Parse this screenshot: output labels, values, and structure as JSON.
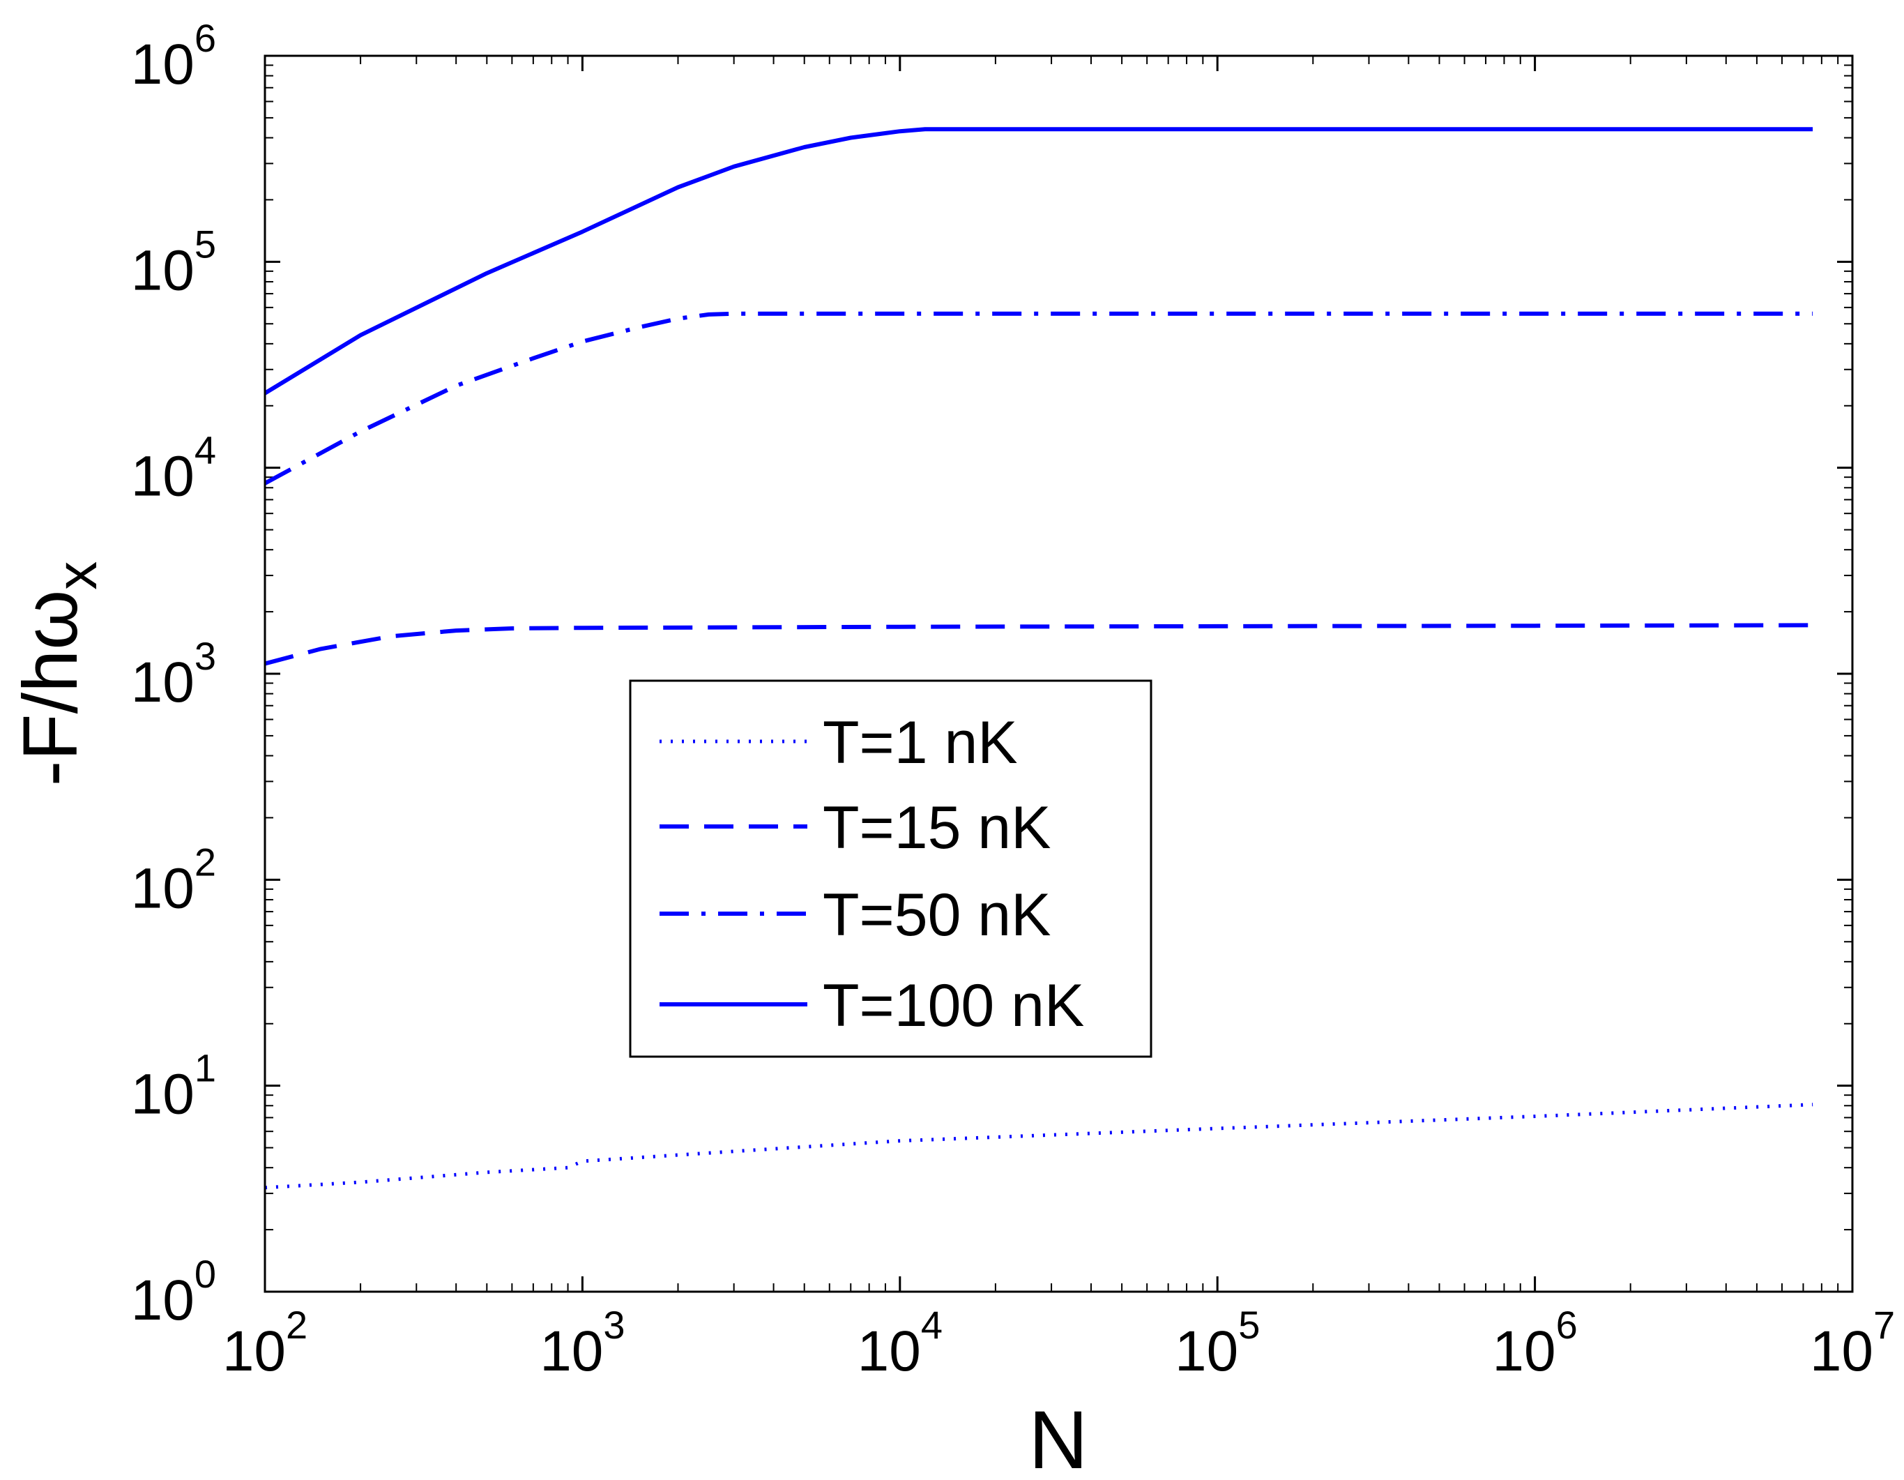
{
  "chart_data": {
    "type": "line",
    "xscale": "log",
    "yscale": "log",
    "xlim": [
      100,
      10000000
    ],
    "ylim": [
      1,
      1000000
    ],
    "xlabel": "N",
    "ylabel_main": "-F/hω",
    "ylabel_sub": "x",
    "xticks": [
      {
        "base": "10",
        "exp": "2",
        "value": 100
      },
      {
        "base": "10",
        "exp": "3",
        "value": 1000
      },
      {
        "base": "10",
        "exp": "4",
        "value": 10000
      },
      {
        "base": "10",
        "exp": "5",
        "value": 100000
      },
      {
        "base": "10",
        "exp": "6",
        "value": 1000000
      },
      {
        "base": "10",
        "exp": "7",
        "value": 10000000
      }
    ],
    "yticks": [
      {
        "base": "10",
        "exp": "0",
        "value": 1
      },
      {
        "base": "10",
        "exp": "1",
        "value": 10
      },
      {
        "base": "10",
        "exp": "2",
        "value": 100
      },
      {
        "base": "10",
        "exp": "3",
        "value": 1000
      },
      {
        "base": "10",
        "exp": "4",
        "value": 10000
      },
      {
        "base": "10",
        "exp": "5",
        "value": 100000
      },
      {
        "base": "10",
        "exp": "6",
        "value": 1000000
      }
    ],
    "line_color": "#0000ff",
    "series": [
      {
        "name": "T=1 nK",
        "style": "dotted",
        "x": [
          100,
          200,
          500,
          900,
          1000,
          3000,
          10000,
          100000,
          1000000,
          7500000
        ],
        "y": [
          3.2,
          3.4,
          3.8,
          4.0,
          4.3,
          4.8,
          5.4,
          6.2,
          7.1,
          8.1
        ]
      },
      {
        "name": "T=15 nK",
        "style": "dashed",
        "x": [
          100,
          150,
          250,
          400,
          600,
          1000,
          3000,
          10000,
          100000,
          1000000,
          7500000
        ],
        "y": [
          1120,
          1320,
          1520,
          1620,
          1660,
          1670,
          1680,
          1690,
          1700,
          1710,
          1720
        ]
      },
      {
        "name": "T=50 nK",
        "style": "dash-dot",
        "x": [
          100,
          200,
          400,
          700,
          1000,
          1500,
          2000,
          2500,
          3000,
          10000,
          100000,
          1000000,
          7500000
        ],
        "y": [
          8400,
          15000,
          25000,
          34000,
          41000,
          48000,
          53000,
          55500,
          56000,
          56000,
          56000,
          56000,
          56000
        ]
      },
      {
        "name": "T=100 nK",
        "style": "solid",
        "x": [
          100,
          200,
          500,
          1000,
          2000,
          3000,
          5000,
          7000,
          10000,
          12000,
          100000,
          1000000,
          7500000
        ],
        "y": [
          23000,
          44000,
          88000,
          140000,
          230000,
          290000,
          360000,
          400000,
          430000,
          440000,
          440000,
          440000,
          440000
        ]
      }
    ]
  }
}
